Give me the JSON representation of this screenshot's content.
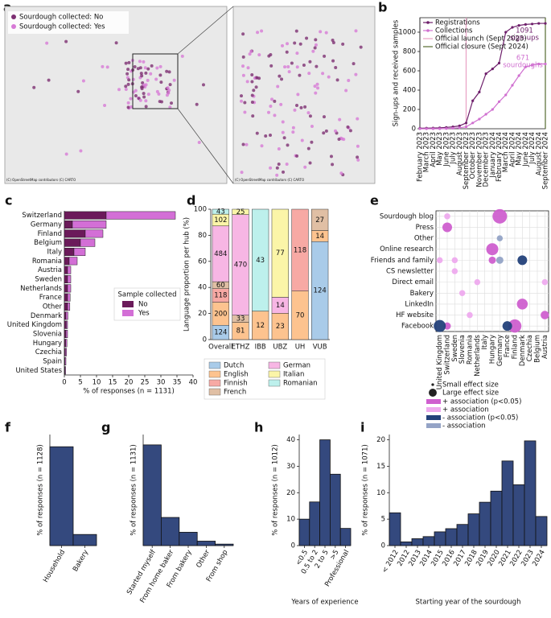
{
  "chart_data": [
    {
      "type": "map",
      "panel": "a",
      "series": [
        {
          "name": "Sourdough collected: No",
          "color": "#7d2f72"
        },
        {
          "name": "Sourdough collected: Yes",
          "color": "#d77ad6"
        }
      ],
      "attribution": [
        "(C) OpenStreetMap contributors (C) CARTO",
        "(C) OpenStreetMap contributors (C) CARTO"
      ]
    },
    {
      "type": "line",
      "panel": "b",
      "ylabel": "Sign-ups and received samples",
      "categories": [
        "February 2023",
        "March 2023",
        "April 2023",
        "May 2023",
        "June 2023",
        "July 2023",
        "August 2023",
        "September 2023",
        "October 2023",
        "November 2023",
        "December 2023",
        "January 2024",
        "February 2024",
        "March 2024",
        "April 2024",
        "May 2024",
        "June 2024",
        "July 2024",
        "August 2024",
        "September 2024"
      ],
      "ylim": [
        0,
        1150
      ],
      "yticks": [
        0,
        200,
        400,
        600,
        800,
        1000
      ],
      "series": [
        {
          "name": "Registrations",
          "color": "#6e1f6b",
          "values": [
            5,
            6,
            8,
            10,
            14,
            20,
            30,
            60,
            290,
            380,
            570,
            620,
            680,
            1000,
            1050,
            1070,
            1080,
            1085,
            1091,
            1091
          ]
        },
        {
          "name": "Collections",
          "color": "#d070d0",
          "values": [
            0,
            0,
            0,
            0,
            2,
            5,
            10,
            20,
            60,
            100,
            150,
            200,
            280,
            350,
            450,
            550,
            640,
            660,
            671,
            671
          ]
        }
      ],
      "vlines": [
        {
          "name": "Official launch (Sept 2023)",
          "at": "September 2023",
          "color": "#e8a0c4"
        },
        {
          "name": "Official closure (Sept 2024)",
          "at": "September 2024",
          "color": "#556b2f"
        }
      ],
      "annotations": [
        {
          "lines": [
            "1091",
            "sign-ups"
          ],
          "color": "#6e1f6b"
        },
        {
          "lines": [
            "671",
            "sourdoughs"
          ],
          "color": "#d070d0"
        }
      ]
    },
    {
      "type": "hbar",
      "panel": "c",
      "xlabel": "% of responses (n = 1131)",
      "categories": [
        "Switzerland",
        "Germany",
        "Finland",
        "Belgium",
        "Italy",
        "Romania",
        "Austria",
        "Sweden",
        "Netherlands",
        "France",
        "Other",
        "Denmark",
        "United Kingdom",
        "Slovenia",
        "Hungary",
        "Czechia",
        "Spain",
        "United States"
      ],
      "xlim": [
        0,
        40
      ],
      "xticks": [
        0,
        5,
        10,
        15,
        20,
        25,
        30,
        35,
        40
      ],
      "legend_title": "Sample collected",
      "series": [
        {
          "name": "No",
          "color": "#6b1a5a",
          "values": [
            13,
            2.5,
            6.5,
            5,
            3,
            1.5,
            1,
            1,
            1,
            1,
            1,
            0.5,
            0.6,
            0.5,
            0.4,
            0.3,
            0.2,
            0.2
          ]
        },
        {
          "name": "Yes",
          "color": "#d36fd6",
          "values": [
            21.5,
            10.5,
            5.5,
            4.5,
            3.5,
            2.5,
            1,
            1,
            1,
            0.8,
            0.7,
            0.6,
            0.4,
            0.5,
            0.4,
            0.4,
            0.3,
            0.2
          ]
        }
      ]
    },
    {
      "type": "stacked_percent",
      "panel": "d",
      "ylabel": "Language proportion per hub (%)",
      "categories": [
        "Overall",
        "ETHZ",
        "IBB",
        "UBZ",
        "UH",
        "VUB"
      ],
      "ylim": [
        0,
        100
      ],
      "yticks": [
        0,
        20,
        40,
        60,
        80,
        100
      ],
      "series": [
        {
          "name": "Dutch",
          "color": "#a9cbe9",
          "values": [
            124,
            null,
            null,
            null,
            null,
            124
          ]
        },
        {
          "name": "English",
          "color": "#fdc38f",
          "values": [
            200,
            81,
            12,
            23,
            70,
            14
          ]
        },
        {
          "name": "Finnish",
          "color": "#f7a9a4",
          "values": [
            118,
            null,
            null,
            null,
            118,
            null
          ]
        },
        {
          "name": "French",
          "color": "#e0bfa4",
          "values": [
            60,
            33,
            null,
            null,
            null,
            27
          ]
        },
        {
          "name": "German",
          "color": "#f7b6e4",
          "values": [
            484,
            470,
            null,
            14,
            null,
            null
          ]
        },
        {
          "name": "Italian",
          "color": "#fbf5a8",
          "values": [
            102,
            25,
            null,
            77,
            null,
            null
          ]
        },
        {
          "name": "Romanian",
          "color": "#bdf0ec",
          "values": [
            43,
            null,
            43,
            null,
            null,
            null
          ]
        }
      ]
    },
    {
      "type": "bubble_matrix",
      "panel": "e",
      "rows": [
        "Sourdough blog",
        "Press",
        "Other",
        "Online research",
        "Friends and family",
        "CS newsletter",
        "Direct email",
        "Bakery",
        "LinkedIn",
        "HF website",
        "Facebook"
      ],
      "columns": [
        "United Kingdom",
        "Switzerland",
        "Sweden",
        "Slovenia",
        "Romania",
        "Netherlands",
        "Italy",
        "Hungary",
        "Germany",
        "France",
        "Finland",
        "Denmark",
        "Czechia",
        "Belgium",
        "Austria"
      ],
      "size_legend": [
        {
          "name": "Small effect size",
          "size": 0.2
        },
        {
          "name": "Large effect size",
          "size": 1
        }
      ],
      "series": [
        {
          "name": "+ association (p<0.05)",
          "color": "#cf5fcf",
          "points": [
            {
              "column": "Germany",
              "row": "Sourdough blog",
              "size": 1
            },
            {
              "column": "Switzerland",
              "row": "Press",
              "size": 0.6
            },
            {
              "column": "Hungary",
              "row": "Online research",
              "size": 0.8
            },
            {
              "column": "Denmark",
              "row": "LinkedIn",
              "size": 0.7
            },
            {
              "column": "Finland",
              "row": "Facebook",
              "size": 0.9
            },
            {
              "column": "Austria",
              "row": "HF website",
              "size": 0.5
            },
            {
              "column": "Switzerland",
              "row": "Facebook",
              "size": 0.4
            },
            {
              "column": "Hungary",
              "row": "Friends and family",
              "size": 0.4
            }
          ]
        },
        {
          "name": "+ association",
          "color": "#eeaaee",
          "points": [
            {
              "column": "United Kingdom",
              "row": "Friends and family",
              "size": 0.3
            },
            {
              "column": "Sweden",
              "row": "CS newsletter",
              "size": 0.3
            },
            {
              "column": "Netherlands",
              "row": "Direct email",
              "size": 0.3
            },
            {
              "column": "Slovenia",
              "row": "Bakery",
              "size": 0.3
            },
            {
              "column": "Austria",
              "row": "Direct email",
              "size": 0.3
            },
            {
              "column": "Sweden",
              "row": "Friends and family",
              "size": 0.3
            },
            {
              "column": "Romania",
              "row": "HF website",
              "size": 0.3
            },
            {
              "column": "Switzerland",
              "row": "Sourdough blog",
              "size": 0.3
            }
          ]
        },
        {
          "name": "- association (p<0.05)",
          "color": "#23417a",
          "points": [
            {
              "column": "United Kingdom",
              "row": "Facebook",
              "size": 0.8
            },
            {
              "column": "France",
              "row": "Facebook",
              "size": 0.6
            },
            {
              "column": "Denmark",
              "row": "Friends and family",
              "size": 0.6
            }
          ]
        },
        {
          "name": "- association",
          "color": "#94a3c6",
          "points": [
            {
              "column": "Germany",
              "row": "Other",
              "size": 0.3
            },
            {
              "column": "Germany",
              "row": "Friends and family",
              "size": 0.4
            }
          ]
        }
      ]
    },
    {
      "type": "bar",
      "panel": "f",
      "ylabel": "% of responses (n = 1128)",
      "color": "#34497e",
      "categories": [
        "Household",
        "Bakery"
      ],
      "values": [
        89,
        10
      ],
      "ylim": [
        0,
        100
      ]
    },
    {
      "type": "bar",
      "panel": "g",
      "ylabel": "% of responses (n = 1131)",
      "color": "#34497e",
      "categories": [
        "Started myself",
        "From home baker",
        "From bakery",
        "Other",
        "From shop"
      ],
      "values": [
        68,
        19,
        9,
        3,
        1
      ],
      "ylim": [
        0,
        75
      ]
    },
    {
      "type": "bar",
      "panel": "h",
      "ylabel": "% of responses (n = 1012)",
      "xlabel": "Years of experience",
      "color": "#34497e",
      "categories": [
        "<0.5",
        "0.5 to 2",
        "2 to 5",
        ">5",
        "Professional"
      ],
      "values": [
        10,
        16.5,
        40,
        27,
        6.5
      ],
      "ylim": [
        0,
        42
      ],
      "yticks": [
        0,
        10,
        20,
        30,
        40
      ]
    },
    {
      "type": "bar",
      "panel": "i",
      "ylabel": "% of responses (n = 1071)",
      "xlabel": "Starting year of the sourdough",
      "color": "#34497e",
      "categories": [
        "< 2012",
        "2012",
        "2013",
        "2014",
        "2015",
        "2016",
        "2017",
        "2018",
        "2019",
        "2020",
        "2021",
        "2022",
        "2023",
        "2024"
      ],
      "values": [
        6.2,
        0.7,
        1.3,
        1.7,
        2.6,
        3.2,
        4,
        6,
        8.2,
        10.3,
        16,
        11.5,
        19.8,
        5.5
      ],
      "ylim": [
        0,
        21
      ],
      "yticks": [
        0,
        5,
        10,
        15,
        20
      ]
    }
  ]
}
